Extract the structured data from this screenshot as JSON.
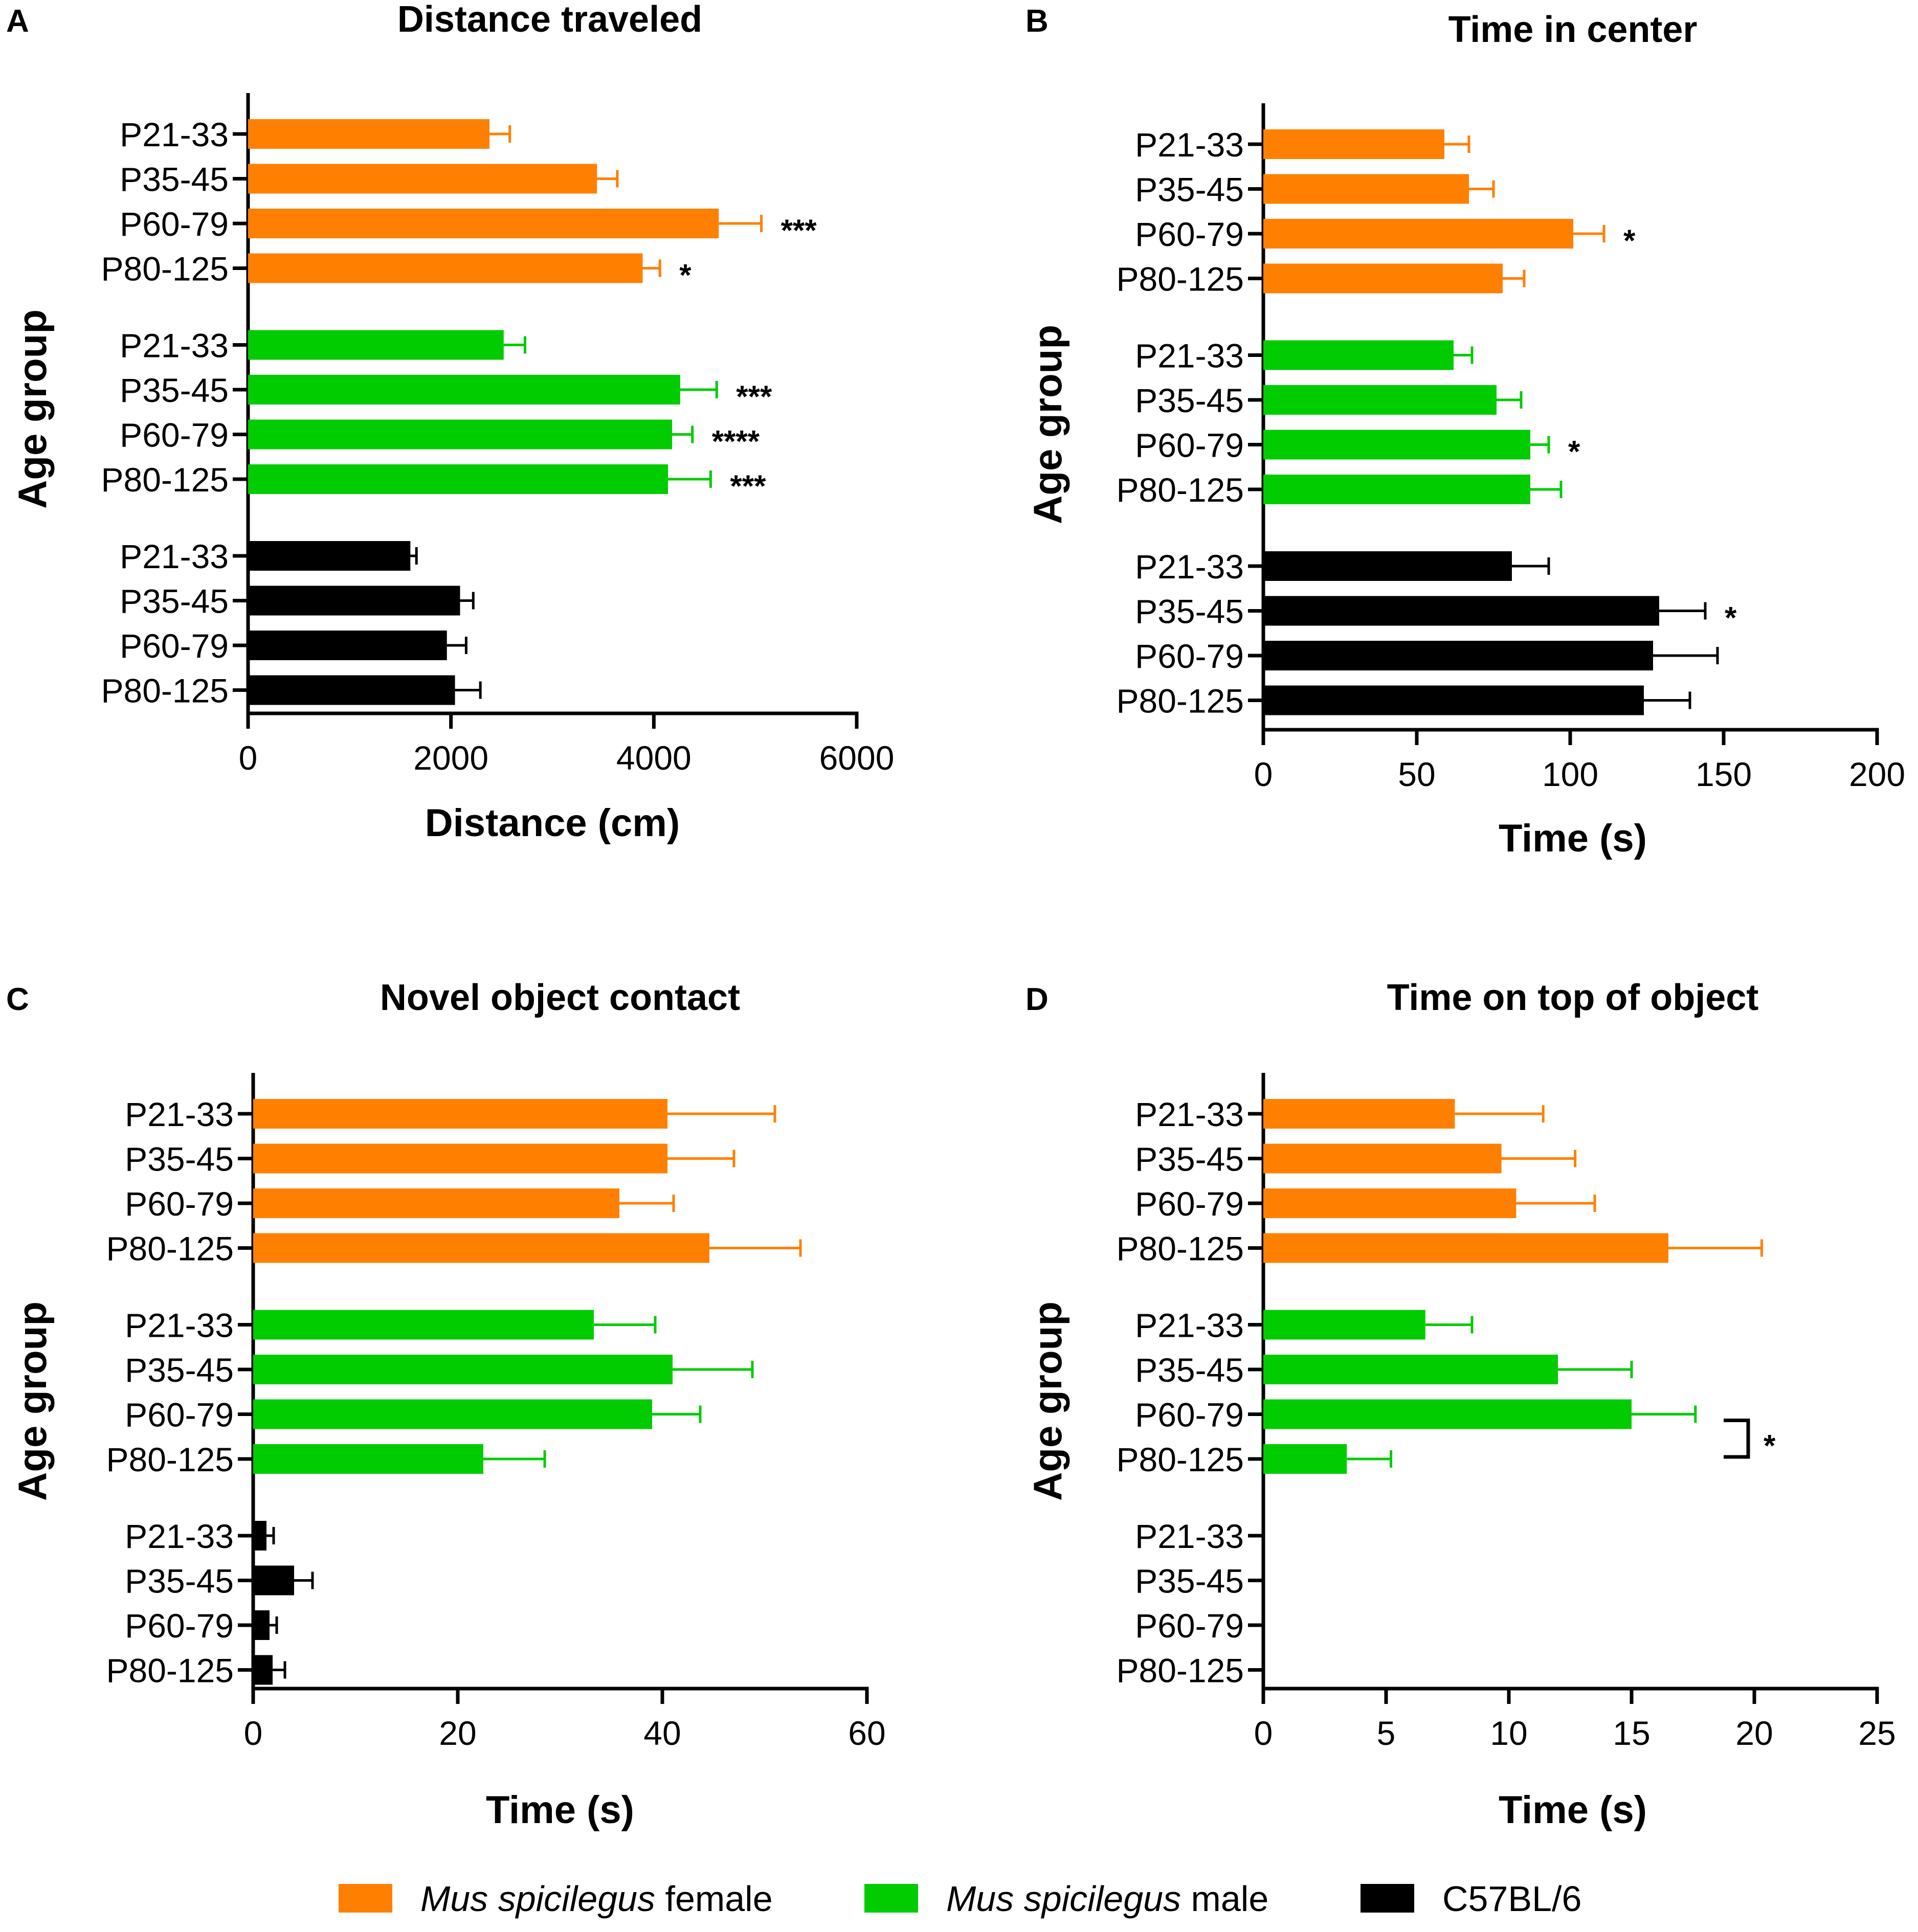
{
  "colors": {
    "female": "#ff8000",
    "male": "#00cc00",
    "c57": "#000000",
    "axis": "#000000"
  },
  "legend": {
    "items": [
      {
        "key": "female",
        "italic": "Mus spicilegus",
        "plain": " female"
      },
      {
        "key": "male",
        "italic": "Mus spicilegus",
        "plain": " male"
      },
      {
        "key": "c57",
        "italic": "",
        "plain": "C57BL/6"
      }
    ]
  },
  "chart_data": [
    {
      "panel": "A",
      "type": "bar",
      "orientation": "horizontal",
      "title": "Distance traveled",
      "xlabel": "Distance (cm)",
      "ylabel": "Age group",
      "xlim": [
        0,
        6000
      ],
      "xticks": [
        0,
        2000,
        4000,
        6000
      ],
      "categories": [
        "P21-33",
        "P35-45",
        "P60-79",
        "P80-125"
      ],
      "series": [
        {
          "name": "Mus spicilegus female",
          "key": "female",
          "values": [
            2380,
            3440,
            4640,
            3890
          ],
          "errors": [
            200,
            200,
            420,
            170
          ],
          "sig": [
            "",
            "",
            "***",
            "*"
          ]
        },
        {
          "name": "Mus spicilegus male",
          "key": "male",
          "values": [
            2520,
            4260,
            4180,
            4140
          ],
          "errors": [
            210,
            360,
            200,
            420
          ],
          "sig": [
            "",
            "***",
            "****",
            "***"
          ]
        },
        {
          "name": "C57BL/6",
          "key": "c57",
          "values": [
            1600,
            2090,
            1960,
            2040
          ],
          "errors": [
            60,
            130,
            190,
            250
          ],
          "sig": [
            "",
            "",
            "",
            ""
          ]
        }
      ]
    },
    {
      "panel": "B",
      "type": "bar",
      "orientation": "horizontal",
      "title": "Time in center",
      "xlabel": "Time (s)",
      "ylabel": "Age group",
      "xlim": [
        0,
        200
      ],
      "xticks": [
        0,
        50,
        100,
        150,
        200
      ],
      "categories": [
        "P21-33",
        "P35-45",
        "P60-79",
        "P80-125"
      ],
      "series": [
        {
          "name": "Mus spicilegus female",
          "key": "female",
          "values": [
            59,
            67,
            101,
            78
          ],
          "errors": [
            8,
            8,
            10,
            7
          ],
          "sig": [
            "",
            "",
            "*",
            ""
          ]
        },
        {
          "name": "Mus spicilegus male",
          "key": "male",
          "values": [
            62,
            76,
            87,
            87
          ],
          "errors": [
            6,
            8,
            6,
            10
          ],
          "sig": [
            "",
            "",
            "*",
            ""
          ]
        },
        {
          "name": "C57BL/6",
          "key": "c57",
          "values": [
            81,
            129,
            127,
            124
          ],
          "errors": [
            12,
            15,
            21,
            15
          ],
          "sig": [
            "",
            "*",
            "",
            ""
          ]
        }
      ]
    },
    {
      "panel": "C",
      "type": "bar",
      "orientation": "horizontal",
      "title": "Novel object contact",
      "xlabel": "Time (s)",
      "ylabel": "Age group",
      "xlim": [
        0,
        60
      ],
      "xticks": [
        0,
        20,
        40,
        60
      ],
      "categories": [
        "P21-33",
        "P35-45",
        "P60-79",
        "P80-125"
      ],
      "series": [
        {
          "name": "Mus spicilegus female",
          "key": "female",
          "values": [
            40.5,
            40.5,
            35.8,
            44.6
          ],
          "errors": [
            10.5,
            6.5,
            5.3,
            8.9
          ],
          "sig": [
            "",
            "",
            "",
            ""
          ]
        },
        {
          "name": "Mus spicilegus male",
          "key": "male",
          "values": [
            33.3,
            41,
            39,
            22.5
          ],
          "errors": [
            6,
            7.8,
            4.7,
            6
          ],
          "sig": [
            "",
            "",
            "",
            ""
          ]
        },
        {
          "name": "C57BL/6",
          "key": "c57",
          "values": [
            1.3,
            4,
            1.6,
            1.9
          ],
          "errors": [
            0.7,
            1.8,
            0.7,
            1.2
          ],
          "sig": [
            "",
            "",
            "",
            ""
          ]
        }
      ]
    },
    {
      "panel": "D",
      "type": "bar",
      "orientation": "horizontal",
      "title": "Time on top of object",
      "xlabel": "Time (s)",
      "ylabel": "Age group",
      "xlim": [
        0,
        25
      ],
      "xticks": [
        0,
        5,
        10,
        15,
        20,
        25
      ],
      "categories": [
        "P21-33",
        "P35-45",
        "P60-79",
        "P80-125"
      ],
      "series": [
        {
          "name": "Mus spicilegus female",
          "key": "female",
          "values": [
            7.8,
            9.7,
            10.3,
            16.5
          ],
          "errors": [
            3.6,
            3.0,
            3.2,
            3.8
          ],
          "sig": [
            "",
            "",
            "",
            ""
          ]
        },
        {
          "name": "Mus spicilegus male",
          "key": "male",
          "values": [
            6.6,
            12,
            15,
            3.4
          ],
          "errors": [
            1.9,
            3.0,
            2.6,
            1.8
          ],
          "sig": [
            "",
            "",
            "",
            ""
          ]
        },
        {
          "name": "C57BL/6",
          "key": "c57",
          "values": [
            0,
            0,
            0,
            0
          ],
          "errors": [
            0,
            0,
            0,
            0
          ],
          "sig": [
            "",
            "",
            "",
            ""
          ]
        }
      ],
      "bracket": {
        "series": "male",
        "between": [
          "P60-79",
          "P80-125"
        ],
        "label": "*"
      }
    }
  ]
}
